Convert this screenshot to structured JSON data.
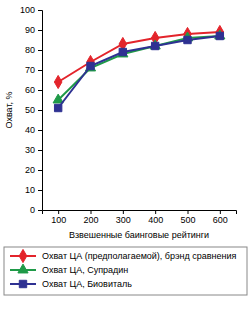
{
  "chart_data": {
    "type": "line",
    "x_label": "Взвешенные баинговые рейтинги",
    "y_label": "Охват, %",
    "categories": [
      "100",
      "200",
      "300",
      "400",
      "500",
      "600"
    ],
    "ylim": [
      0,
      100
    ],
    "yticks": [
      0,
      10,
      20,
      30,
      40,
      50,
      60,
      70,
      80,
      90,
      100
    ],
    "grid": false,
    "legend": "bottom",
    "series": [
      {
        "name": "Охват ЦА (предполагаемой), брэнд сравнения",
        "color": "#e3242b",
        "marker": "diamond",
        "values": [
          64,
          74,
          83,
          86,
          88,
          89
        ]
      },
      {
        "name": "Охват ЦА, Супрадин",
        "color": "#1f9a48",
        "marker": "triangle",
        "values": [
          55,
          71,
          78,
          82,
          86,
          87
        ]
      },
      {
        "name": "Охват ЦА, Биовиталь",
        "color": "#2e3192",
        "marker": "square",
        "values": [
          51,
          72,
          79,
          82,
          85,
          87
        ]
      }
    ]
  }
}
